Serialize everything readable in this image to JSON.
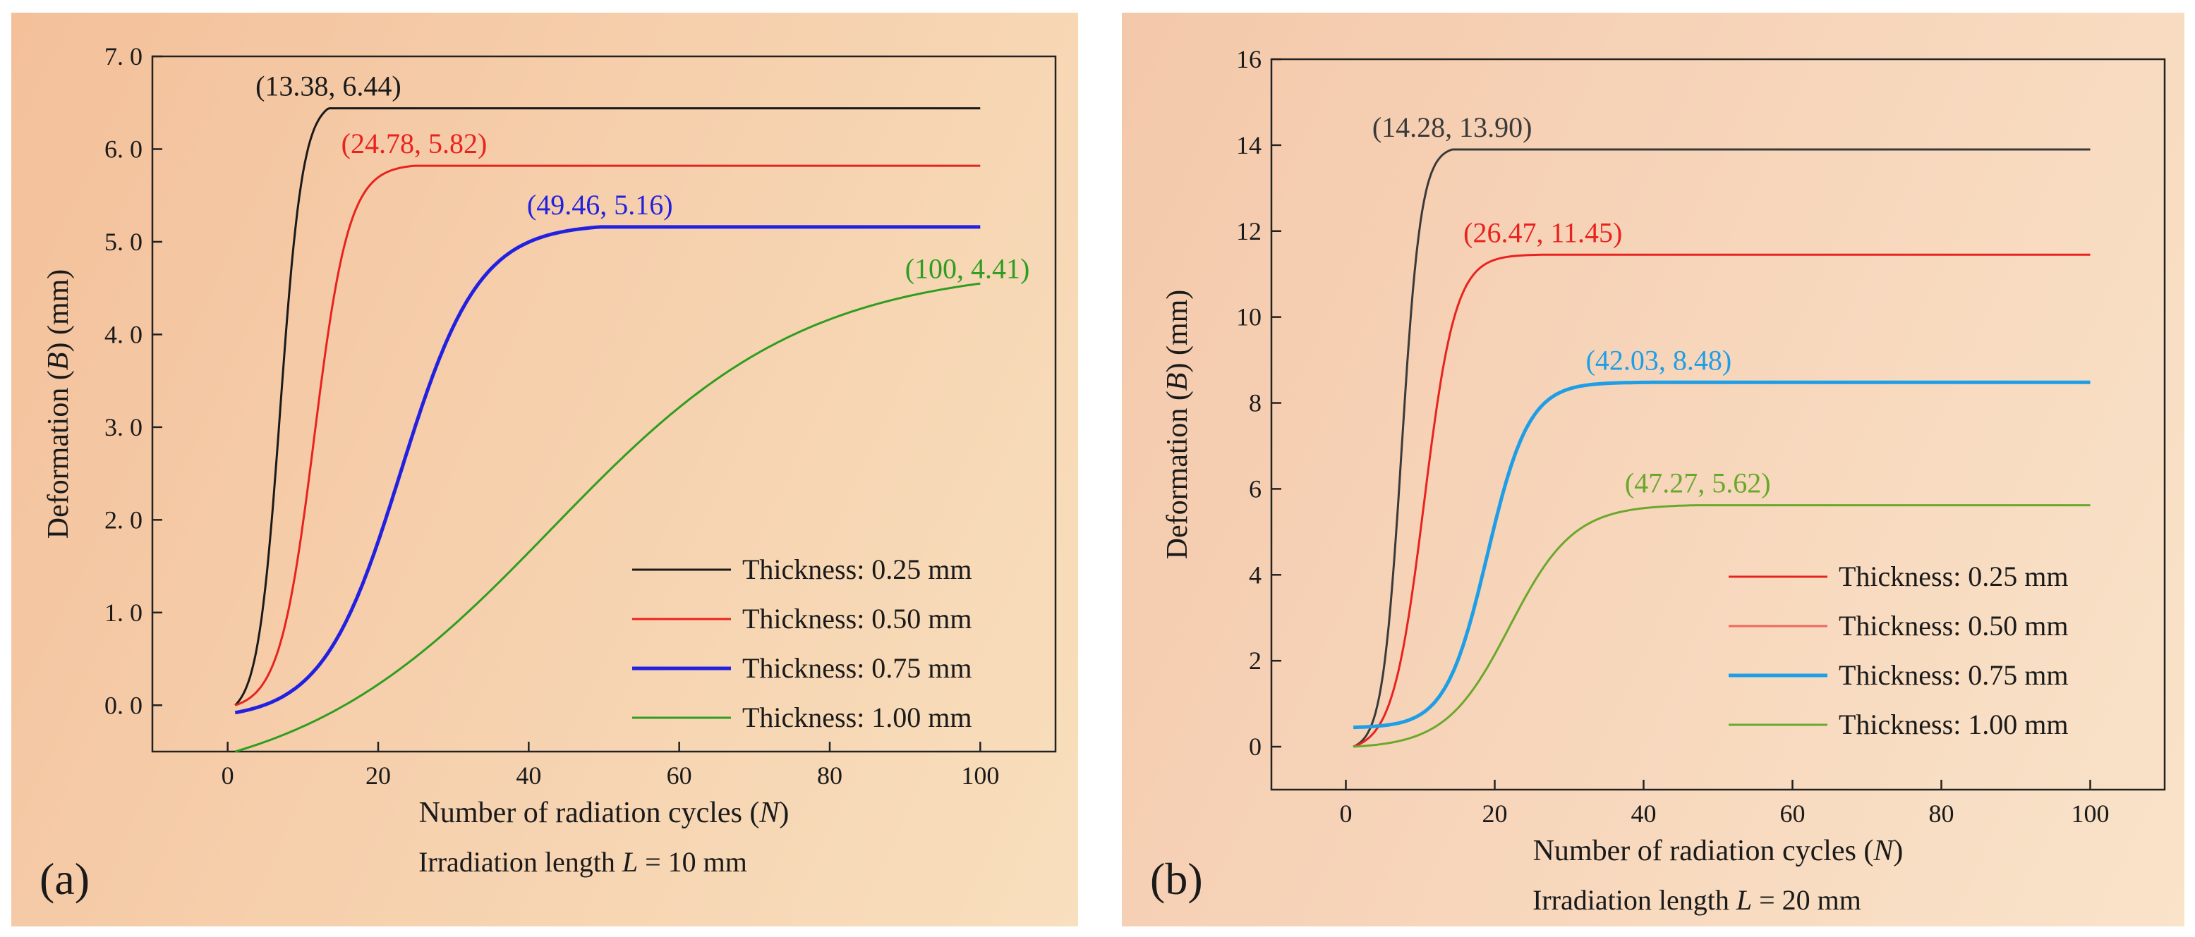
{
  "chart_data": [
    {
      "type": "line",
      "panel_label": "(a)",
      "xlabel": "Number of radiation cycles (N)",
      "xlabel_parts": [
        "Number of radiation cycles (",
        "N",
        ")"
      ],
      "ylabel": "Deformation (B) (mm)",
      "ylabel_parts": [
        "Deformation (",
        "B",
        ") (mm)"
      ],
      "subtitle": "Irradiation length L = 10 mm",
      "subtitle_parts": [
        "Irradiation length ",
        "L",
        " = 10 mm"
      ],
      "xlim": [
        -10,
        110
      ],
      "ylim": [
        -0.5,
        7.0
      ],
      "xticks": [
        0,
        20,
        40,
        60,
        80,
        100
      ],
      "xtick_labels": [
        "0",
        "20",
        "40",
        "60",
        "80",
        "100"
      ],
      "yticks": [
        0,
        1,
        2,
        3,
        4,
        5,
        6,
        7
      ],
      "ytick_labels": [
        "0. 0",
        "1. 0",
        "2. 0",
        "3. 0",
        "4. 0",
        "5. 0",
        "6. 0",
        "7. 0"
      ],
      "legend_position": "bottom-right",
      "series": [
        {
          "name": "Thickness: 0.25 mm",
          "color": "#1a1a1a",
          "width": 3,
          "model": {
            "min": 0.0,
            "max": 6.44,
            "mid": 7.0,
            "scale": 1.5,
            "end": 13.38
          },
          "annotation": {
            "label": "(13.38, 6.44)",
            "x": 13.38,
            "y": 6.44
          }
        },
        {
          "name": "Thickness: 0.50 mm",
          "color": "#e8231f",
          "width": 3,
          "model": {
            "min": 0.0,
            "max": 5.82,
            "mid": 11.5,
            "scale": 2.3,
            "end": 24.78
          },
          "annotation": {
            "label": "(24.78, 5.82)",
            "x": 24.78,
            "y": 5.82
          }
        },
        {
          "name": "Thickness: 0.75 mm",
          "color": "#2321e0",
          "width": 5,
          "model": {
            "min": -0.08,
            "max": 5.16,
            "mid": 23.0,
            "scale": 5.2,
            "end": 49.46
          },
          "annotation": {
            "label": "(49.46, 5.16)",
            "x": 49.46,
            "y": 5.16
          }
        },
        {
          "name": "Thickness: 1.00 mm",
          "color": "#2f9d1f",
          "width": 3,
          "model": {
            "min": -0.5,
            "max": 4.55,
            "mid": 43.0,
            "scale": 17.0,
            "end": 100
          },
          "annotation": {
            "label": "(100, 4.41)",
            "x": 100,
            "y": 4.41
          }
        }
      ]
    },
    {
      "type": "line",
      "panel_label": "(b)",
      "xlabel": "Number of radiation cycles (N)",
      "xlabel_parts": [
        "Number of radiation cycles (",
        "N",
        ")"
      ],
      "ylabel": "Deformation (B) (mm)",
      "ylabel_parts": [
        "Deformation (",
        "B",
        ") (mm)"
      ],
      "subtitle": "Irradiation length L = 20 mm",
      "subtitle_parts": [
        "Irradiation length ",
        "L",
        " = 20 mm"
      ],
      "xlim": [
        -10,
        110
      ],
      "ylim": [
        -1.0,
        16.0
      ],
      "xticks": [
        0,
        20,
        40,
        60,
        80,
        100
      ],
      "xtick_labels": [
        "0",
        "20",
        "40",
        "60",
        "80",
        "100"
      ],
      "yticks": [
        0,
        2,
        4,
        6,
        8,
        10,
        12,
        14,
        16
      ],
      "ytick_labels": [
        "0",
        "2",
        "4",
        "6",
        "8",
        "10",
        "12",
        "14",
        "16"
      ],
      "legend_position": "bottom-right",
      "series": [
        {
          "name": "Thickness: 0.25 mm",
          "color": "#3a3a3a",
          "legend_color": "#e8231f",
          "width": 3,
          "model": {
            "min": 0.0,
            "max": 13.9,
            "mid": 7.5,
            "scale": 1.3,
            "end": 14.28
          },
          "annotation": {
            "label": "(14.28, 13.90)",
            "x": 14.28,
            "y": 13.9
          }
        },
        {
          "name": "Thickness: 0.50 mm",
          "color": "#e8231f",
          "legend_color": "#f0675c",
          "width": 3,
          "model": {
            "min": 0.0,
            "max": 11.45,
            "mid": 10.5,
            "scale": 2.1,
            "end": 26.47
          },
          "annotation": {
            "label": "(26.47, 11.45)",
            "x": 26.47,
            "y": 11.45
          }
        },
        {
          "name": "Thickness: 0.75 mm",
          "color": "#1e9ee6",
          "width": 5,
          "model": {
            "min": 0.45,
            "max": 8.48,
            "mid": 19.0,
            "scale": 2.8,
            "end": 42.03
          },
          "annotation": {
            "label": "(42.03, 8.48)",
            "x": 42.03,
            "y": 8.48
          }
        },
        {
          "name": "Thickness: 1.00 mm",
          "color": "#6aa82b",
          "width": 3,
          "model": {
            "min": 0.0,
            "max": 5.62,
            "mid": 22.0,
            "scale": 4.3,
            "end": 47.27
          },
          "annotation": {
            "label": "(47.27, 5.62)",
            "x": 47.27,
            "y": 5.62
          }
        }
      ]
    }
  ]
}
